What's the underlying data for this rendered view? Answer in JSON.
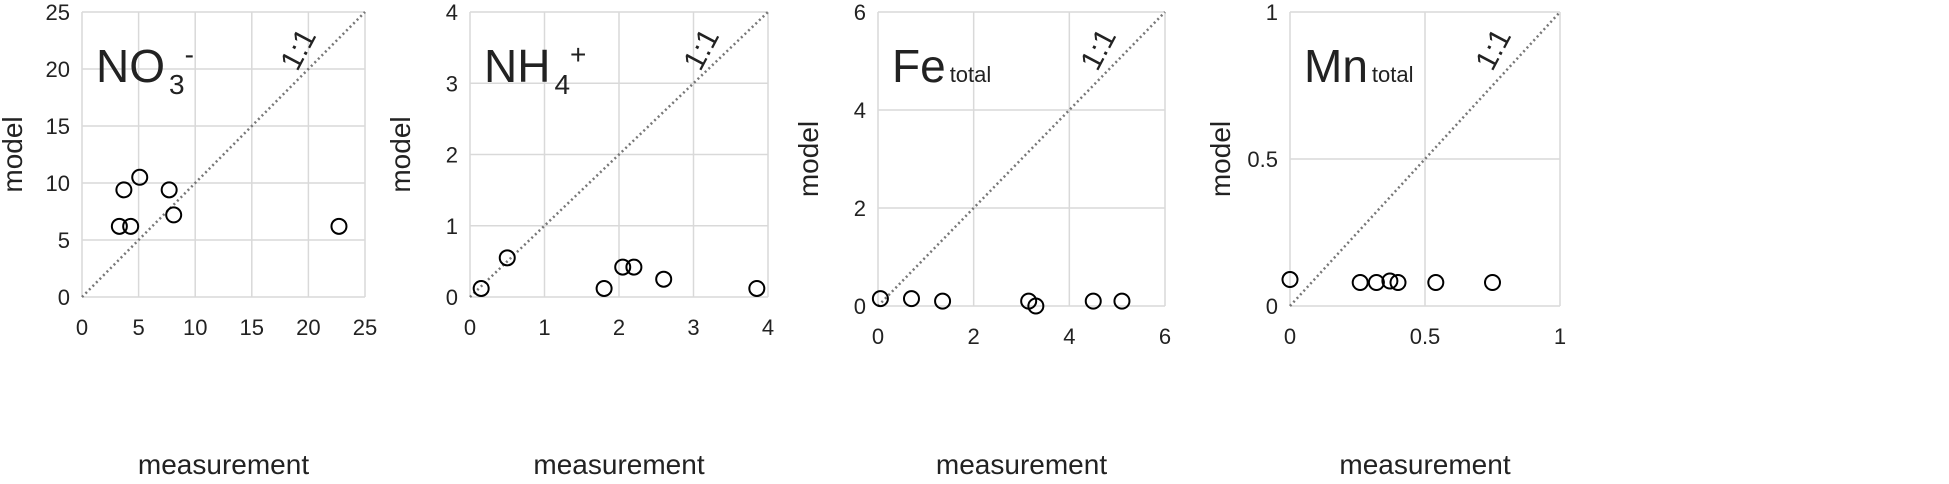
{
  "chart_data": [
    {
      "type": "scatter",
      "title": "NO",
      "title_sub": "3",
      "title_sup": "-",
      "annotation": "1:1",
      "x_label": "measurement",
      "y_label": "model",
      "x": [
        3.3,
        3.7,
        4.3,
        5.1,
        7.7,
        8.1,
        22.7
      ],
      "values": [
        6.2,
        9.4,
        6.2,
        10.5,
        9.4,
        7.2,
        6.2
      ],
      "xlim": [
        0,
        25
      ],
      "ylim": [
        0,
        25
      ],
      "xticks": [
        0,
        5,
        10,
        15,
        20,
        25
      ],
      "yticks": [
        0,
        5,
        10,
        15,
        20,
        25
      ],
      "grid": true,
      "color": "#000000"
    },
    {
      "type": "scatter",
      "title": "NH",
      "title_sub": "4",
      "title_sup": "+",
      "annotation": "1:1",
      "x_label": "measurement",
      "y_label": "model",
      "x": [
        0.15,
        0.5,
        1.8,
        2.05,
        2.2,
        2.6,
        3.85
      ],
      "values": [
        0.12,
        0.55,
        0.12,
        0.42,
        0.42,
        0.25,
        0.12
      ],
      "xlim": [
        0,
        4
      ],
      "ylim": [
        0,
        4
      ],
      "xticks": [
        0,
        1,
        2,
        3,
        4
      ],
      "yticks": [
        0,
        1,
        2,
        3,
        4
      ],
      "grid": true,
      "color": "#000000"
    },
    {
      "type": "scatter",
      "title": "Fe",
      "title_sub": "total",
      "annotation": "1:1",
      "x_label": "measurement",
      "y_label": "model",
      "x": [
        0.05,
        0.7,
        1.35,
        3.15,
        3.3,
        4.5,
        5.1
      ],
      "values": [
        0.15,
        0.15,
        0.1,
        0.1,
        0,
        0.1,
        0.1
      ],
      "xlim": [
        0,
        6
      ],
      "ylim": [
        0,
        6
      ],
      "xticks": [
        0,
        2,
        4,
        6
      ],
      "yticks": [
        0,
        2,
        4,
        6
      ],
      "grid": true,
      "color": "#000000"
    },
    {
      "type": "scatter",
      "title": "Mn",
      "title_sub": "total",
      "annotation": "1:1",
      "x_label": "measurement",
      "y_label": "model",
      "x": [
        0,
        0.26,
        0.32,
        0.37,
        0.4,
        0.54,
        0.75
      ],
      "values": [
        0.09,
        0.08,
        0.08,
        0.085,
        0.08,
        0.08,
        0.08
      ],
      "xlim": [
        0,
        1
      ],
      "ylim": [
        0,
        1
      ],
      "xticks": [
        0,
        0.5,
        1
      ],
      "yticks": [
        0,
        0.5,
        1
      ],
      "grid": true,
      "color": "#000000"
    }
  ]
}
